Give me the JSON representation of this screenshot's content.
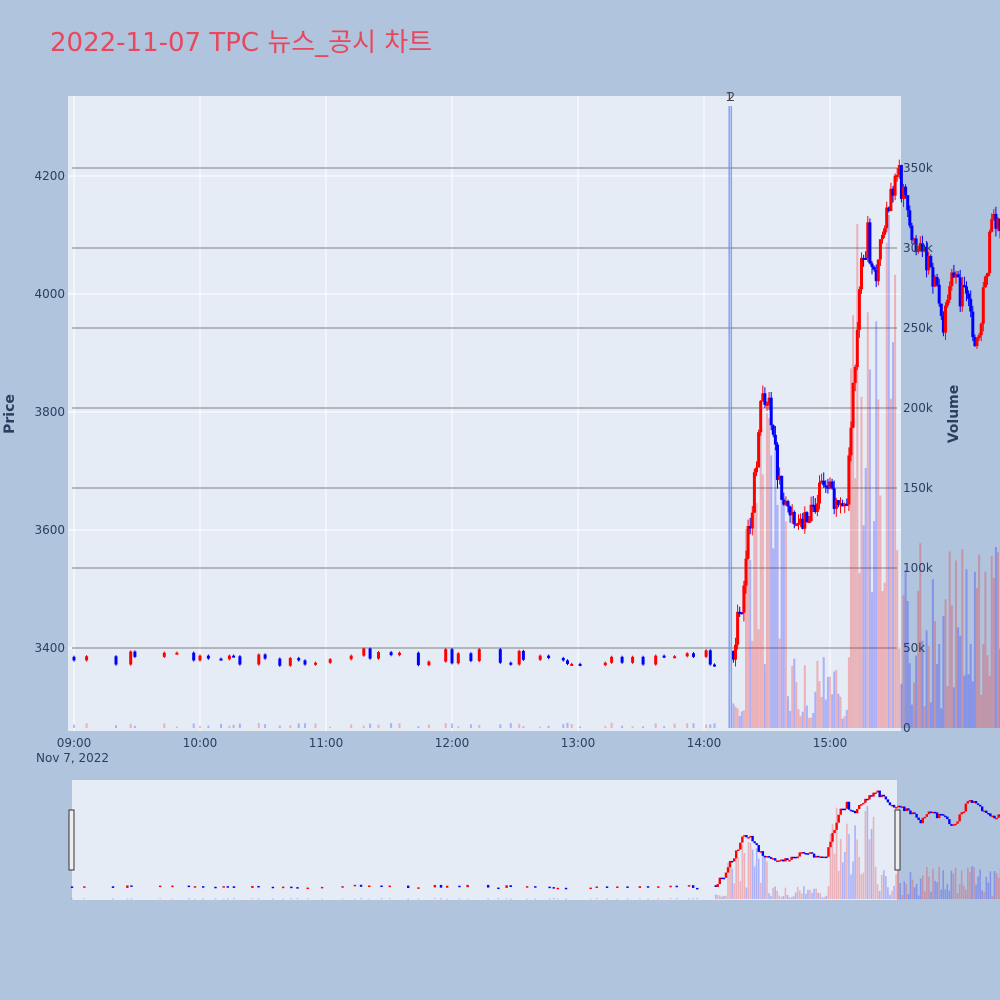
{
  "title": "2022-11-07 TPC 뉴스_공시 차트",
  "colors": {
    "up": "#ff0000",
    "down": "#0000ff",
    "page_bg": "#b0c4de",
    "plot_bg": "#e5ecf6",
    "title": "#e8475c"
  },
  "chart_data": {
    "type": "candlestick",
    "title": "2022-11-07 TPC 뉴스_공시 차트",
    "xlabel": "",
    "xlabel_date": "Nov 7, 2022",
    "ylabel": "Price",
    "y2label": "Volume",
    "x_ticks": [
      "09:00",
      "10:00",
      "11:00",
      "12:00",
      "13:00",
      "14:00",
      "15:00"
    ],
    "xlim": [
      "09:00",
      "15:30"
    ],
    "ylim": [
      3260,
      4330
    ],
    "y_ticks": [
      3400,
      3600,
      3800,
      4000,
      4200
    ],
    "y2lim": [
      0,
      390000
    ],
    "y2_ticks": [
      0,
      50000,
      100000,
      150000,
      200000,
      250000,
      300000,
      350000
    ],
    "y2_tick_labels": [
      "0",
      "50k",
      "100k",
      "150k",
      "200k",
      "250k",
      "300k",
      "350k"
    ],
    "hlines": [
      350000,
      300000,
      250000,
      200000,
      150000,
      100000,
      50000
    ],
    "news_markers": [
      {
        "time": "14:12",
        "label": "1"
      },
      {
        "time": "14:13",
        "label": "2"
      }
    ],
    "grid": true,
    "rangeslider": true
  }
}
